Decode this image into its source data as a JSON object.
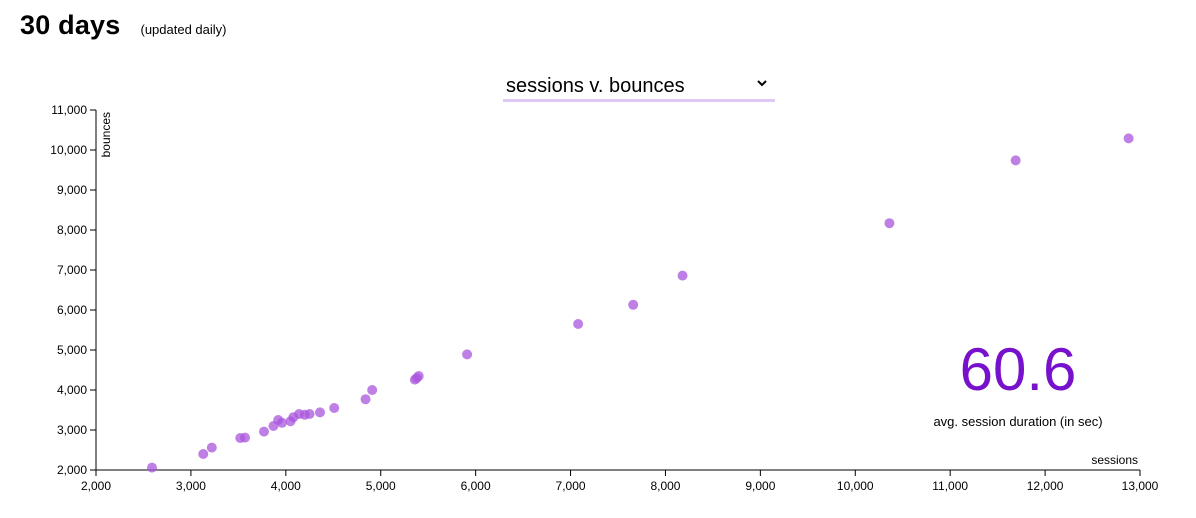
{
  "header": {
    "title": "30 days",
    "subtitle": "(updated daily)"
  },
  "selector": {
    "value": "sessions v. bounces",
    "icon": "chevron-down-icon"
  },
  "metric": {
    "value": "60.6",
    "label": "avg. session duration (in sec)",
    "color": "#7711cc"
  },
  "colors": {
    "point": "#aa55dd"
  },
  "chart_data": {
    "type": "scatter",
    "xlabel": "sessions",
    "ylabel": "bounces",
    "xlim": [
      2000,
      13000
    ],
    "ylim": [
      2000,
      11000
    ],
    "xticks": [
      2000,
      3000,
      4000,
      5000,
      6000,
      7000,
      8000,
      9000,
      10000,
      11000,
      12000,
      13000
    ],
    "yticks": [
      2000,
      3000,
      4000,
      5000,
      6000,
      7000,
      8000,
      9000,
      10000,
      11000
    ],
    "xtick_labels": [
      "2,000",
      "3,000",
      "4,000",
      "5,000",
      "6,000",
      "7,000",
      "8,000",
      "9,000",
      "10,000",
      "11,000",
      "12,000",
      "13,000"
    ],
    "ytick_labels": [
      "2,000",
      "3,000",
      "4,000",
      "5,000",
      "6,000",
      "7,000",
      "8,000",
      "9,000",
      "10,000",
      "11,000"
    ],
    "grid": false,
    "points": [
      {
        "x": 2590,
        "y": 2060
      },
      {
        "x": 3130,
        "y": 2400
      },
      {
        "x": 3220,
        "y": 2560
      },
      {
        "x": 3520,
        "y": 2800
      },
      {
        "x": 3570,
        "y": 2810
      },
      {
        "x": 3770,
        "y": 2960
      },
      {
        "x": 3870,
        "y": 3100
      },
      {
        "x": 3920,
        "y": 3250
      },
      {
        "x": 3960,
        "y": 3180
      },
      {
        "x": 4050,
        "y": 3220
      },
      {
        "x": 4080,
        "y": 3320
      },
      {
        "x": 4140,
        "y": 3400
      },
      {
        "x": 4200,
        "y": 3380
      },
      {
        "x": 4250,
        "y": 3400
      },
      {
        "x": 4360,
        "y": 3440
      },
      {
        "x": 4510,
        "y": 3550
      },
      {
        "x": 4840,
        "y": 3770
      },
      {
        "x": 4910,
        "y": 4000
      },
      {
        "x": 5360,
        "y": 4260
      },
      {
        "x": 5380,
        "y": 4300
      },
      {
        "x": 5400,
        "y": 4350
      },
      {
        "x": 5910,
        "y": 4890
      },
      {
        "x": 7080,
        "y": 5650
      },
      {
        "x": 7660,
        "y": 6130
      },
      {
        "x": 8180,
        "y": 6860
      },
      {
        "x": 10360,
        "y": 8170
      },
      {
        "x": 11690,
        "y": 9740
      },
      {
        "x": 12880,
        "y": 10290
      }
    ]
  }
}
